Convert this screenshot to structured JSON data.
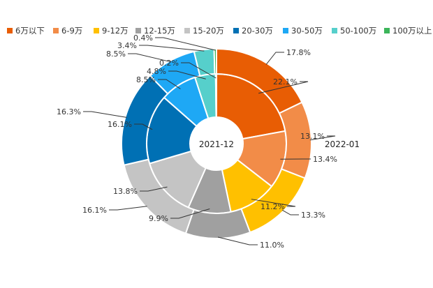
{
  "chart_data": {
    "type": "pie",
    "subtype": "nested-donut",
    "categories": [
      "6万以下",
      "6-9万",
      "9-12万",
      "12-15万",
      "15-20万",
      "20-30万",
      "30-50万",
      "50-100万",
      "100万以上"
    ],
    "colors": [
      "#E85D04",
      "#F28C48",
      "#FFC000",
      "#A0A0A0",
      "#C4C4C4",
      "#0070B4",
      "#1EA8F5",
      "#56CFCB",
      "#3CB55A"
    ],
    "series": [
      {
        "name": "2021-12",
        "ring": "inner",
        "values": [
          22.1,
          13.4,
          11.2,
          9.9,
          13.8,
          16.1,
          8.5,
          4.8,
          0.2
        ],
        "labels": [
          "22.1%",
          "13.4%",
          "11.2%",
          "9.9%",
          "13.8%",
          "16.1%",
          "8.5%",
          "4.8%",
          "0.2%"
        ]
      },
      {
        "name": "2022-01",
        "ring": "outer",
        "values": [
          17.8,
          13.1,
          13.3,
          11.0,
          16.1,
          16.3,
          8.5,
          3.4,
          0.4
        ],
        "labels": [
          "17.8%",
          "13.1%",
          "13.3%",
          "11.0%",
          "16.1%",
          "16.3%",
          "8.5%",
          "3.4%",
          "0.4%"
        ]
      }
    ],
    "legend_position": "top",
    "title": ""
  }
}
